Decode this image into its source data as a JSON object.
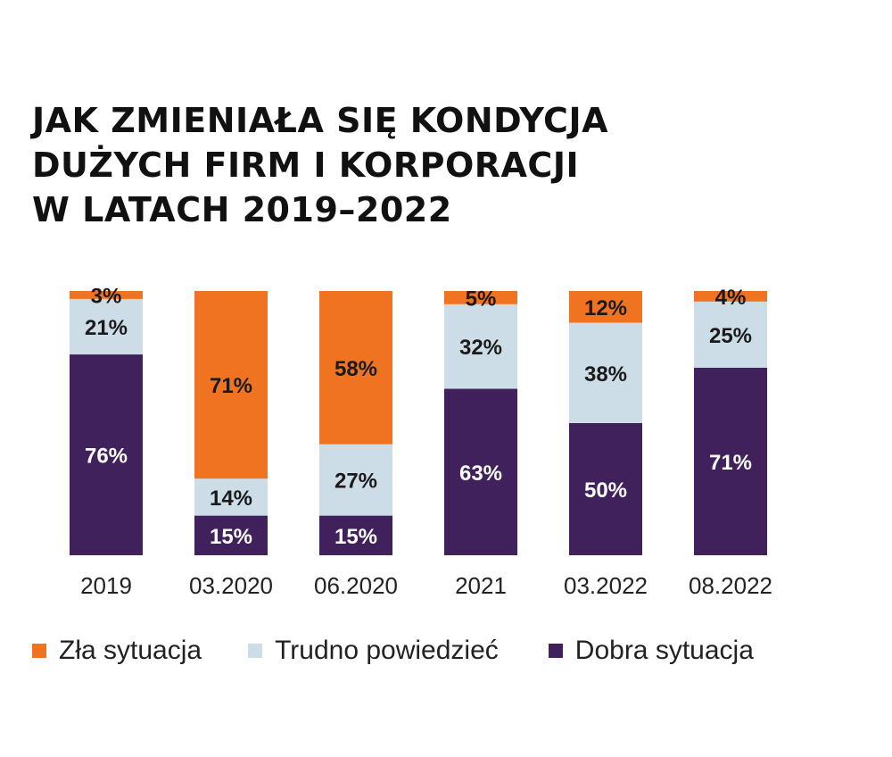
{
  "title_lines": [
    "JAK ZMIENIAŁA SIĘ KONDYCJA",
    "DUŻYCH FIRM I KORPORACJI",
    "W LATACH 2019–2022"
  ],
  "colors": {
    "bad": "#f07322",
    "unsure": "#ccdde8",
    "good": "#40215c"
  },
  "chart_data": {
    "type": "bar",
    "stacked": true,
    "categories": [
      "2019",
      "03.2020",
      "06.2020",
      "2021",
      "03.2022",
      "08.2022"
    ],
    "series": [
      {
        "name": "Dobra sytuacja",
        "values": [
          76,
          15,
          15,
          63,
          50,
          71
        ]
      },
      {
        "name": "Trudno powiedzieć",
        "values": [
          21,
          14,
          27,
          32,
          38,
          25
        ]
      },
      {
        "name": "Zła sytuacja",
        "values": [
          3,
          71,
          58,
          5,
          12,
          4
        ]
      }
    ],
    "labels": [
      [
        "76%",
        "15%",
        "15%",
        "63%",
        "50%",
        "71%"
      ],
      [
        "21%",
        "14%",
        "27%",
        "32%",
        "38%",
        "25%"
      ],
      [
        "3%",
        "71%",
        "58%",
        "5%",
        "12%",
        "4%"
      ]
    ],
    "ylim": [
      0,
      100
    ],
    "grid": false,
    "legend_position": "bottom"
  },
  "legend": [
    {
      "label": "Zła sytuacja",
      "color": "#f07322"
    },
    {
      "label": "Trudno powiedzieć",
      "color": "#ccdde8"
    },
    {
      "label": "Dobra sytuacja",
      "color": "#40215c"
    }
  ]
}
